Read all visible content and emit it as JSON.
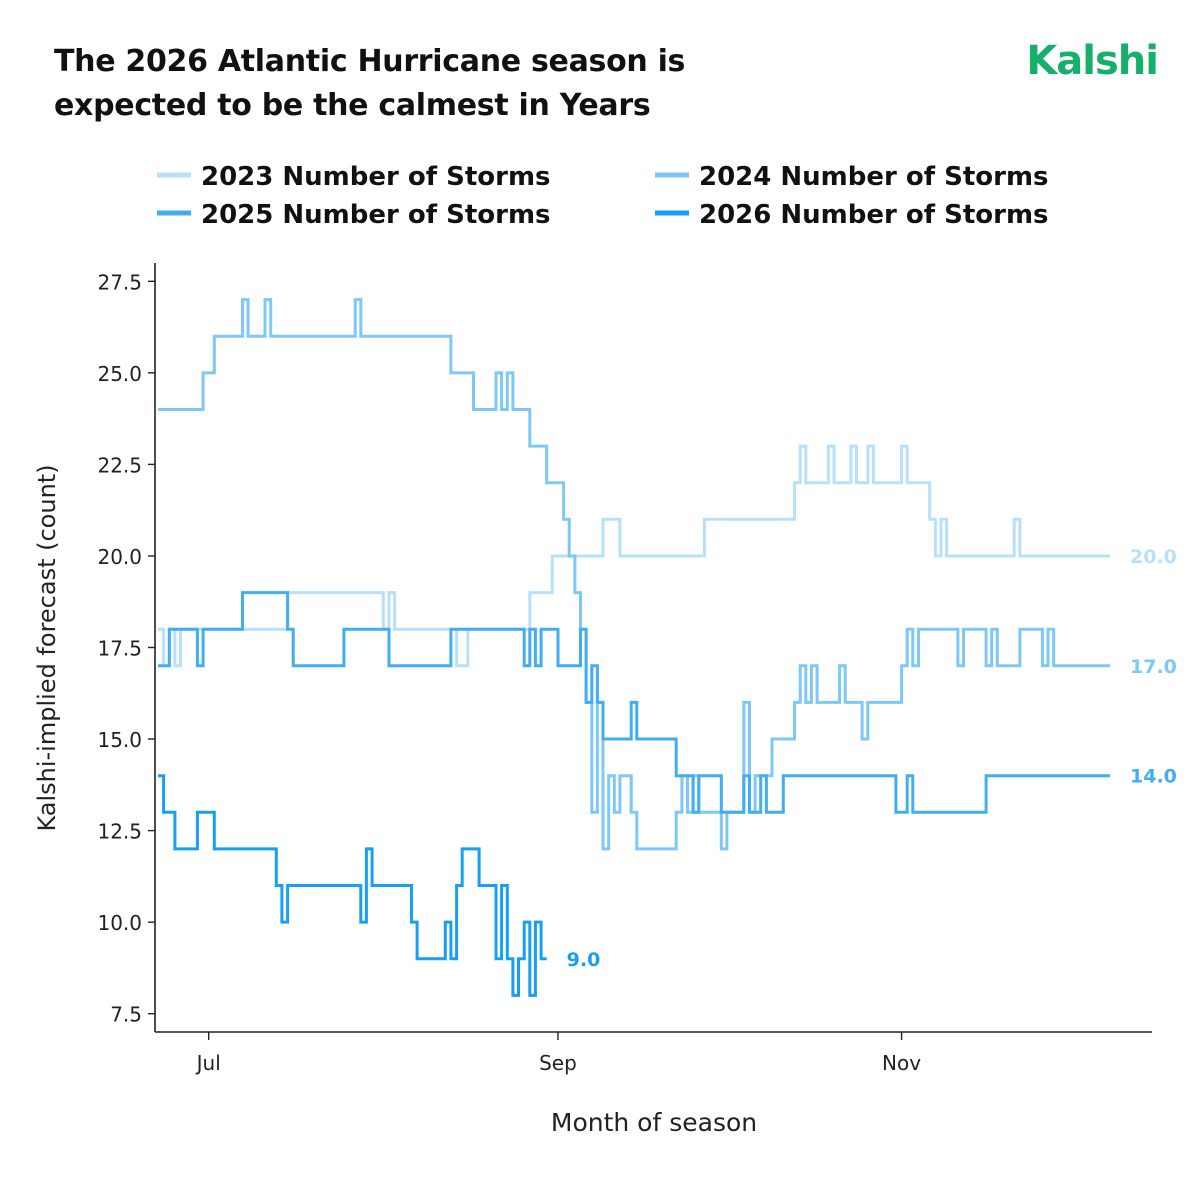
{
  "header": {
    "title_line1": "The 2026 Atlantic Hurricane season is",
    "title_line2": "expected to be the calmest in Years",
    "brand": "Kalshi",
    "brand_color": "#17b06b"
  },
  "chart_data": {
    "type": "line",
    "title": "The 2026 Atlantic Hurricane season is expected to be the calmest in Years",
    "xlabel": "Month of season",
    "ylabel": "Kalshi-implied forecast (count)",
    "x_ticks": [
      {
        "label": "Jul",
        "date": "2000-07-01"
      },
      {
        "label": "Sep",
        "date": "2000-09-01"
      },
      {
        "label": "Nov",
        "date": "2000-11-01"
      }
    ],
    "xlim": [
      "2000-06-22",
      "2000-12-08"
    ],
    "y_ticks": [
      "7.5",
      "10.0",
      "12.5",
      "15.0",
      "17.5",
      "20.0",
      "22.5",
      "25.0",
      "27.5"
    ],
    "ylim": [
      7,
      28
    ],
    "grid": false,
    "legend_position": "top",
    "series": [
      {
        "name": "2023 Number of Storms",
        "color": "#b9e0fa",
        "end_label": "20.0",
        "points": [
          [
            "06-22",
            18
          ],
          [
            "06-23",
            17
          ],
          [
            "06-24",
            18
          ],
          [
            "06-25",
            17
          ],
          [
            "06-26",
            18
          ],
          [
            "07-01",
            18
          ],
          [
            "07-14",
            18
          ],
          [
            "07-15",
            19
          ],
          [
            "07-31",
            19
          ],
          [
            "08-01",
            18
          ],
          [
            "08-02",
            19
          ],
          [
            "08-03",
            18
          ],
          [
            "08-13",
            18
          ],
          [
            "08-14",
            17
          ],
          [
            "08-16",
            18
          ],
          [
            "08-26",
            18
          ],
          [
            "08-27",
            19
          ],
          [
            "08-30",
            19
          ],
          [
            "08-31",
            20
          ],
          [
            "09-08",
            20
          ],
          [
            "09-09",
            21
          ],
          [
            "09-11",
            21
          ],
          [
            "09-12",
            20
          ],
          [
            "09-26",
            20
          ],
          [
            "09-27",
            21
          ],
          [
            "10-12",
            21
          ],
          [
            "10-13",
            22
          ],
          [
            "10-14",
            23
          ],
          [
            "10-15",
            22
          ],
          [
            "10-18",
            22
          ],
          [
            "10-19",
            23
          ],
          [
            "10-20",
            22
          ],
          [
            "10-22",
            22
          ],
          [
            "10-23",
            23
          ],
          [
            "10-24",
            22
          ],
          [
            "10-26",
            23
          ],
          [
            "10-27",
            22
          ],
          [
            "10-31",
            22
          ],
          [
            "11-01",
            23
          ],
          [
            "11-02",
            22
          ],
          [
            "11-05",
            22
          ],
          [
            "11-06",
            21
          ],
          [
            "11-07",
            20
          ],
          [
            "11-08",
            21
          ],
          [
            "11-09",
            20
          ],
          [
            "11-20",
            20
          ],
          [
            "11-21",
            21
          ],
          [
            "11-22",
            20
          ],
          [
            "12-08",
            20
          ]
        ]
      },
      {
        "name": "2024 Number of Storms",
        "color": "#7ec8f5",
        "end_label": "17.0",
        "points": [
          [
            "06-22",
            24
          ],
          [
            "06-29",
            24
          ],
          [
            "06-30",
            25
          ],
          [
            "07-01",
            25
          ],
          [
            "07-02",
            26
          ],
          [
            "07-06",
            26
          ],
          [
            "07-07",
            27
          ],
          [
            "07-08",
            26
          ],
          [
            "07-10",
            26
          ],
          [
            "07-11",
            27
          ],
          [
            "07-12",
            26
          ],
          [
            "07-26",
            26
          ],
          [
            "07-27",
            27
          ],
          [
            "07-28",
            26
          ],
          [
            "08-12",
            26
          ],
          [
            "08-13",
            25
          ],
          [
            "08-16",
            25
          ],
          [
            "08-17",
            24
          ],
          [
            "08-20",
            24
          ],
          [
            "08-21",
            25
          ],
          [
            "08-22",
            24
          ],
          [
            "08-23",
            25
          ],
          [
            "08-24",
            24
          ],
          [
            "08-26",
            24
          ],
          [
            "08-27",
            23
          ],
          [
            "08-29",
            23
          ],
          [
            "08-30",
            22
          ],
          [
            "09-01",
            22
          ],
          [
            "09-02",
            21
          ],
          [
            "09-03",
            20
          ],
          [
            "09-04",
            19
          ],
          [
            "09-05",
            18
          ],
          [
            "09-06",
            16
          ],
          [
            "09-07",
            13
          ],
          [
            "09-08",
            16
          ],
          [
            "09-09",
            12
          ],
          [
            "09-10",
            14
          ],
          [
            "09-11",
            13
          ],
          [
            "09-12",
            14
          ],
          [
            "09-14",
            13
          ],
          [
            "09-15",
            12
          ],
          [
            "09-21",
            12
          ],
          [
            "09-22",
            13
          ],
          [
            "09-23",
            14
          ],
          [
            "09-24",
            13
          ],
          [
            "09-25",
            14
          ],
          [
            "09-26",
            13
          ],
          [
            "09-29",
            13
          ],
          [
            "09-30",
            12
          ],
          [
            "10-01",
            13
          ],
          [
            "10-03",
            13
          ],
          [
            "10-04",
            16
          ],
          [
            "10-05",
            13
          ],
          [
            "10-06",
            14
          ],
          [
            "10-08",
            14
          ],
          [
            "10-09",
            15
          ],
          [
            "10-12",
            15
          ],
          [
            "10-13",
            16
          ],
          [
            "10-14",
            17
          ],
          [
            "10-15",
            16
          ],
          [
            "10-16",
            17
          ],
          [
            "10-17",
            16
          ],
          [
            "10-20",
            16
          ],
          [
            "10-21",
            17
          ],
          [
            "10-22",
            16
          ],
          [
            "10-24",
            16
          ],
          [
            "10-25",
            15
          ],
          [
            "10-26",
            16
          ],
          [
            "10-31",
            16
          ],
          [
            "11-01",
            17
          ],
          [
            "11-02",
            18
          ],
          [
            "11-03",
            17
          ],
          [
            "11-04",
            18
          ],
          [
            "11-10",
            18
          ],
          [
            "11-11",
            17
          ],
          [
            "11-12",
            18
          ],
          [
            "11-15",
            18
          ],
          [
            "11-16",
            17
          ],
          [
            "11-17",
            18
          ],
          [
            "11-18",
            17
          ],
          [
            "11-21",
            17
          ],
          [
            "11-22",
            18
          ],
          [
            "11-25",
            18
          ],
          [
            "11-26",
            17
          ],
          [
            "11-27",
            18
          ],
          [
            "11-28",
            17
          ],
          [
            "12-08",
            17
          ]
        ]
      },
      {
        "name": "2025 Number of Storms",
        "color": "#42aef0",
        "end_label": "14.0",
        "points": [
          [
            "06-22",
            17
          ],
          [
            "06-23",
            17
          ],
          [
            "06-24",
            18
          ],
          [
            "06-28",
            18
          ],
          [
            "06-29",
            17
          ],
          [
            "06-30",
            18
          ],
          [
            "07-06",
            18
          ],
          [
            "07-07",
            19
          ],
          [
            "07-14",
            19
          ],
          [
            "07-15",
            18
          ],
          [
            "07-16",
            17
          ],
          [
            "07-24",
            17
          ],
          [
            "07-25",
            18
          ],
          [
            "08-01",
            18
          ],
          [
            "08-02",
            17
          ],
          [
            "08-12",
            17
          ],
          [
            "08-13",
            18
          ],
          [
            "08-25",
            18
          ],
          [
            "08-26",
            17
          ],
          [
            "08-27",
            18
          ],
          [
            "08-28",
            17
          ],
          [
            "08-29",
            18
          ],
          [
            "08-31",
            18
          ],
          [
            "09-01",
            17
          ],
          [
            "09-04",
            17
          ],
          [
            "09-05",
            18
          ],
          [
            "09-06",
            16
          ],
          [
            "09-07",
            17
          ],
          [
            "09-08",
            16
          ],
          [
            "09-09",
            15
          ],
          [
            "09-13",
            15
          ],
          [
            "09-14",
            16
          ],
          [
            "09-15",
            15
          ],
          [
            "09-21",
            15
          ],
          [
            "09-22",
            14
          ],
          [
            "09-24",
            14
          ],
          [
            "09-25",
            13
          ],
          [
            "09-26",
            14
          ],
          [
            "09-29",
            14
          ],
          [
            "09-30",
            13
          ],
          [
            "10-03",
            13
          ],
          [
            "10-04",
            14
          ],
          [
            "10-05",
            13
          ],
          [
            "10-07",
            14
          ],
          [
            "10-08",
            13
          ],
          [
            "10-10",
            13
          ],
          [
            "10-11",
            14
          ],
          [
            "10-31",
            14
          ],
          [
            "10-31",
            13
          ],
          [
            "11-01",
            13
          ],
          [
            "11-02",
            14
          ],
          [
            "11-03",
            13
          ],
          [
            "11-15",
            13
          ],
          [
            "11-16",
            14
          ],
          [
            "12-08",
            14
          ]
        ]
      },
      {
        "name": "2026 Number of Storms",
        "color": "#199ff0",
        "end_label": "9.0",
        "points": [
          [
            "06-22",
            14
          ],
          [
            "06-23",
            13
          ],
          [
            "06-24",
            13
          ],
          [
            "06-25",
            12
          ],
          [
            "06-28",
            12
          ],
          [
            "06-29",
            13
          ],
          [
            "07-01",
            13
          ],
          [
            "07-02",
            12
          ],
          [
            "07-12",
            12
          ],
          [
            "07-13",
            11
          ],
          [
            "07-14",
            10
          ],
          [
            "07-15",
            11
          ],
          [
            "07-27",
            11
          ],
          [
            "07-28",
            10
          ],
          [
            "07-29",
            12
          ],
          [
            "07-30",
            11
          ],
          [
            "08-05",
            11
          ],
          [
            "08-06",
            10
          ],
          [
            "08-07",
            9
          ],
          [
            "08-11",
            9
          ],
          [
            "08-12",
            10
          ],
          [
            "08-13",
            9
          ],
          [
            "08-14",
            11
          ],
          [
            "08-15",
            12
          ],
          [
            "08-17",
            12
          ],
          [
            "08-18",
            11
          ],
          [
            "08-20",
            11
          ],
          [
            "08-21",
            9
          ],
          [
            "08-22",
            11
          ],
          [
            "08-23",
            9
          ],
          [
            "08-24",
            8
          ],
          [
            "08-25",
            9
          ],
          [
            "08-26",
            10
          ],
          [
            "08-27",
            8
          ],
          [
            "08-28",
            10
          ],
          [
            "08-29",
            9
          ],
          [
            "08-30",
            9
          ]
        ]
      }
    ]
  }
}
